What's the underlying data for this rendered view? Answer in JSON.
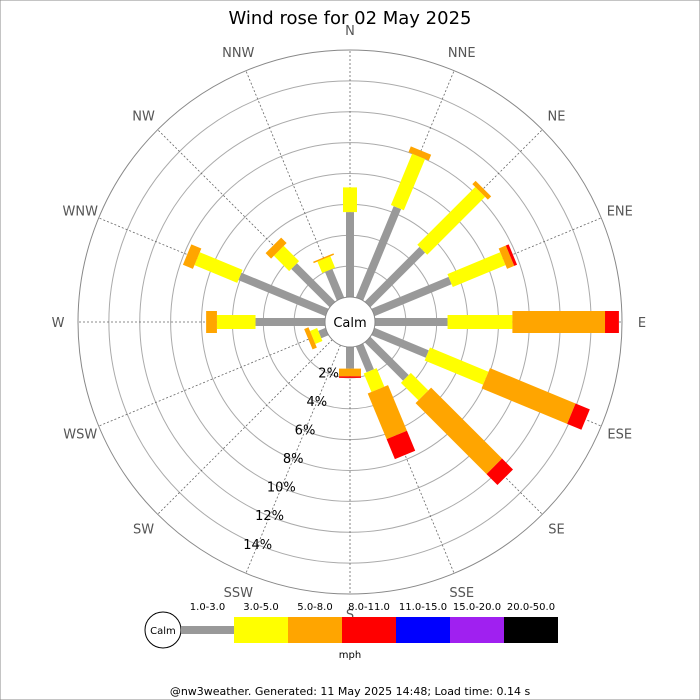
{
  "chart_data": {
    "type": "wind-rose",
    "title": "Wind rose for 02 May 2025",
    "directions": [
      "N",
      "NNE",
      "NE",
      "ENE",
      "E",
      "ESE",
      "SE",
      "SSE",
      "S",
      "SSW",
      "SW",
      "WSW",
      "W",
      "WNW",
      "NW",
      "NNW"
    ],
    "radial_tick_labels": [
      "2%",
      "4%",
      "6%",
      "8%",
      "10%",
      "12%",
      "14%"
    ],
    "radial_ticks": [
      2,
      4,
      6,
      8,
      10,
      12,
      14
    ],
    "rmax_percent": 16,
    "calm_label": "Calm",
    "unit": "mph",
    "speed_bins": [
      {
        "label": "1.0-3.0",
        "color": "#999999"
      },
      {
        "label": "3.0-5.0",
        "color": "#ffff00"
      },
      {
        "label": "5.0-8.0",
        "color": "#ffa500"
      },
      {
        "label": "8.0-11.0",
        "color": "#ff0000"
      },
      {
        "label": "11.0-15.0",
        "color": "#0000ff"
      },
      {
        "label": "15.0-20.0",
        "color": "#a020f0"
      },
      {
        "label": "20.0-50.0",
        "color": "#000000"
      }
    ],
    "cumulative_percent": [
      [
        5.5,
        7.1,
        7.1,
        7.1,
        7.1,
        7.1,
        7.1
      ],
      [
        6.4,
        10.0,
        10.4,
        10.4,
        10.4,
        10.4,
        10.4
      ],
      [
        5.0,
        10.3,
        10.6,
        10.6,
        10.6,
        10.6,
        10.6
      ],
      [
        5.4,
        9.1,
        9.6,
        9.8,
        9.8,
        9.8,
        9.8
      ],
      [
        4.7,
        8.9,
        14.9,
        15.8,
        15.8,
        15.8,
        15.8
      ],
      [
        3.8,
        7.9,
        13.9,
        14.9,
        14.9,
        14.9,
        14.9
      ],
      [
        3.5,
        5.1,
        11.6,
        12.6,
        12.6,
        12.6,
        12.6
      ],
      [
        1.8,
        3.1,
        6.3,
        7.7,
        7.7,
        7.7,
        7.7
      ],
      [
        1.4,
        1.4,
        1.9,
        2.0,
        2.0,
        2.0,
        2.0
      ],
      [
        0.0,
        0.0,
        0.0,
        0.0,
        0.0,
        0.0,
        0.0
      ],
      [
        0.0,
        0.0,
        0.0,
        0.0,
        0.0,
        0.0,
        0.0
      ],
      [
        0.5,
        1.0,
        1.3,
        1.3,
        1.3,
        1.3,
        1.3
      ],
      [
        4.5,
        7.0,
        7.7,
        7.7,
        7.7,
        7.7,
        7.7
      ],
      [
        6.1,
        9.1,
        9.8,
        9.8,
        9.8,
        9.8,
        9.8
      ],
      [
        3.5,
        4.9,
        5.4,
        5.4,
        5.4,
        5.4,
        5.4
      ],
      [
        2.0,
        2.8,
        2.9,
        2.9,
        2.9,
        2.9,
        2.9
      ]
    ]
  },
  "footer": "@nw3weather. Generated: 11 May 2025 14:48; Load time: 0.14 s"
}
